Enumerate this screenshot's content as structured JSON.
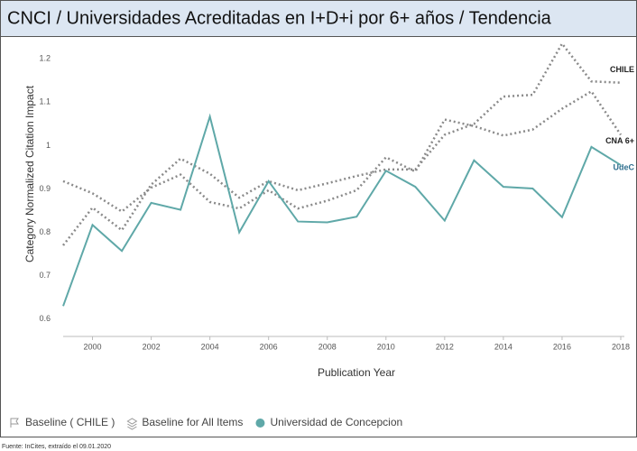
{
  "chart_data": {
    "type": "line",
    "title": "CNCI / Universidades Acreditadas en I+D+i por 6+ años / Tendencia",
    "x_label": "Publication Year",
    "y_label": "Category Normalized Citation Impact",
    "x": [
      1999,
      2000,
      2001,
      2002,
      2003,
      2004,
      2005,
      2006,
      2007,
      2008,
      2009,
      2010,
      2011,
      2012,
      2013,
      2014,
      2015,
      2016,
      2017,
      2018
    ],
    "xlim": [
      1999,
      2018
    ],
    "xticks": [
      2000,
      2002,
      2004,
      2006,
      2008,
      2010,
      2012,
      2014,
      2016,
      2018
    ],
    "ylim": [
      0.56,
      1.24
    ],
    "yticks": [
      0.6,
      0.7,
      0.8,
      0.9,
      1,
      1.1,
      1.2
    ],
    "grid": false,
    "legend": "bottom-left",
    "series": [
      {
        "name": "Baseline ( CHILE )",
        "end_label": "CHILE",
        "color": "#8a8a8a",
        "dotted": true,
        "values": [
          0.77,
          0.857,
          0.805,
          0.91,
          0.97,
          0.935,
          0.88,
          0.918,
          0.897,
          0.913,
          0.93,
          0.945,
          0.945,
          1.025,
          1.05,
          1.113,
          1.117,
          1.235,
          1.148,
          1.145
        ]
      },
      {
        "name": "Baseline for All Items",
        "end_label": "CNA 6+",
        "color": "#8a8a8a",
        "dotted": true,
        "values": [
          0.918,
          0.89,
          0.848,
          0.903,
          0.933,
          0.87,
          0.855,
          0.897,
          0.855,
          0.873,
          0.897,
          0.973,
          0.94,
          1.06,
          1.045,
          1.023,
          1.037,
          1.085,
          1.125,
          1.025
        ]
      },
      {
        "name": "Universidad de Concepcion",
        "end_label": "UdeC",
        "color": "#5fa8a8",
        "dotted": false,
        "values": [
          0.63,
          0.817,
          0.757,
          0.868,
          0.852,
          1.067,
          0.8,
          0.918,
          0.825,
          0.823,
          0.836,
          0.942,
          0.905,
          0.827,
          0.966,
          0.905,
          0.901,
          0.835,
          0.997,
          0.955
        ]
      }
    ],
    "source": "Fuente: InCites, extraído el 09.01.2020"
  }
}
